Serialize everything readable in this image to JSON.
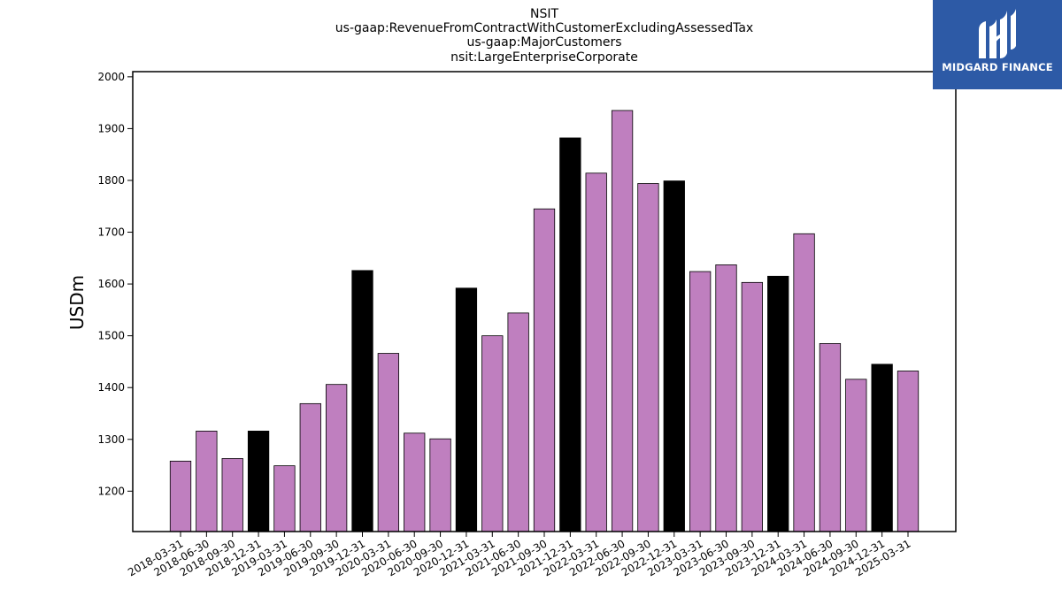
{
  "brand": {
    "logo_text": "MIDGARD FINANCE",
    "logo_icon": "midgard-logo-mark",
    "bg_color": "#2d5aa6"
  },
  "chart_data": {
    "type": "bar",
    "title_lines": [
      "NSIT",
      "us-gaap:RevenueFromContractWithCustomerExcludingAssessedTax",
      "us-gaap:MajorCustomers",
      "nsit:LargeEnterpriseCorporate"
    ],
    "xlabel": "",
    "ylabel": "USDm",
    "ylim": [
      1122,
      2010
    ],
    "yticks": [
      1200,
      1300,
      1400,
      1500,
      1600,
      1700,
      1800,
      1900,
      2000
    ],
    "grid": false,
    "colors": {
      "default": "#bf7fbf",
      "highlight": "#000000"
    },
    "categories": [
      "2018-03-31",
      "2018-06-30",
      "2018-09-30",
      "2018-12-31",
      "2019-03-31",
      "2019-06-30",
      "2019-09-30",
      "2019-12-31",
      "2020-03-31",
      "2020-06-30",
      "2020-09-30",
      "2020-12-31",
      "2021-03-31",
      "2021-06-30",
      "2021-09-30",
      "2021-12-31",
      "2022-03-31",
      "2022-06-30",
      "2022-09-30",
      "2022-12-31",
      "2023-03-31",
      "2023-06-30",
      "2023-09-30",
      "2023-12-31",
      "2024-03-31",
      "2024-06-30",
      "2024-09-30",
      "2024-12-31",
      "2025-03-31"
    ],
    "values": [
      1258,
      1316,
      1263,
      1316,
      1249,
      1369,
      1406,
      1626,
      1466,
      1312,
      1301,
      1592,
      1500,
      1544,
      1745,
      1882,
      1814,
      1935,
      1794,
      1799,
      1624,
      1637,
      1603,
      1615,
      1697,
      1485,
      1416,
      1445,
      1432
    ],
    "highlight_indices": [
      3,
      7,
      11,
      15,
      19,
      23,
      27
    ]
  }
}
